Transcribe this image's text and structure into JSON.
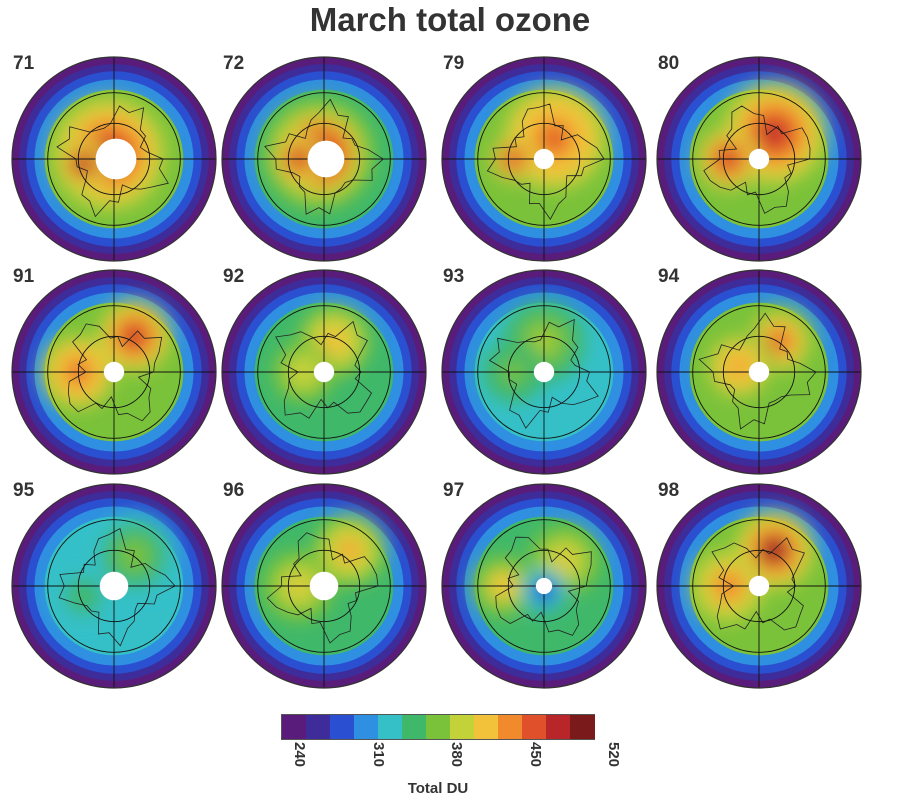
{
  "title": "March total ozone",
  "panels": [
    {
      "label": "71",
      "pattern": {
        "blobs": [
          {
            "dx": -0.05,
            "dy": -0.05,
            "r": 0.55,
            "v": 485
          },
          {
            "dx": -0.3,
            "dy": 0.05,
            "r": 0.25,
            "v": 505
          }
        ],
        "hole": 0.2,
        "bg": 370
      }
    },
    {
      "label": "72",
      "pattern": {
        "blobs": [
          {
            "dx": -0.05,
            "dy": -0.05,
            "r": 0.55,
            "v": 480
          },
          {
            "dx": -0.25,
            "dy": 0.0,
            "r": 0.25,
            "v": 500
          }
        ],
        "hole": 0.18,
        "bg": 365
      }
    },
    {
      "label": "79",
      "pattern": {
        "blobs": [
          {
            "dx": 0.1,
            "dy": -0.2,
            "r": 0.5,
            "v": 465
          },
          {
            "dx": -0.3,
            "dy": 0.0,
            "r": 0.22,
            "v": 495
          }
        ],
        "hole": 0.1,
        "bg": 385
      }
    },
    {
      "label": "80",
      "pattern": {
        "blobs": [
          {
            "dx": 0.15,
            "dy": -0.25,
            "r": 0.5,
            "v": 490
          },
          {
            "dx": -0.3,
            "dy": 0.0,
            "r": 0.3,
            "v": 480
          }
        ],
        "hole": 0.1,
        "bg": 390
      }
    },
    {
      "label": "91",
      "pattern": {
        "blobs": [
          {
            "dx": 0.2,
            "dy": -0.35,
            "r": 0.35,
            "v": 495
          },
          {
            "dx": -0.35,
            "dy": 0.0,
            "r": 0.35,
            "v": 470
          }
        ],
        "hole": 0.1,
        "bg": 375
      }
    },
    {
      "label": "92",
      "pattern": {
        "blobs": [
          {
            "dx": 0.1,
            "dy": -0.3,
            "r": 0.35,
            "v": 430
          },
          {
            "dx": -0.2,
            "dy": 0.0,
            "r": 0.3,
            "v": 410
          }
        ],
        "hole": 0.1,
        "bg": 365
      }
    },
    {
      "label": "93",
      "pattern": {
        "blobs": [
          {
            "dx": 0.0,
            "dy": -0.3,
            "r": 0.4,
            "v": 395
          },
          {
            "dx": -0.3,
            "dy": 0.0,
            "r": 0.3,
            "v": 385
          }
        ],
        "hole": 0.1,
        "bg": 345
      }
    },
    {
      "label": "94",
      "pattern": {
        "blobs": [
          {
            "dx": 0.2,
            "dy": -0.3,
            "r": 0.35,
            "v": 460
          },
          {
            "dx": -0.2,
            "dy": -0.05,
            "r": 0.35,
            "v": 445
          }
        ],
        "hole": 0.1,
        "bg": 370
      }
    },
    {
      "label": "95",
      "pattern": {
        "blobs": [
          {
            "dx": 0.2,
            "dy": -0.3,
            "r": 0.4,
            "v": 380
          },
          {
            "dx": -0.3,
            "dy": 0.1,
            "r": 0.3,
            "v": 360
          }
        ],
        "hole": 0.14,
        "bg": 330
      }
    },
    {
      "label": "96",
      "pattern": {
        "blobs": [
          {
            "dx": 0.25,
            "dy": -0.35,
            "r": 0.35,
            "v": 445
          },
          {
            "dx": -0.25,
            "dy": 0.0,
            "r": 0.35,
            "v": 420
          }
        ],
        "hole": 0.14,
        "bg": 360
      }
    },
    {
      "label": "97",
      "pattern": {
        "blobs": [
          {
            "dx": 0.2,
            "dy": -0.25,
            "r": 0.35,
            "v": 420
          },
          {
            "dx": -0.4,
            "dy": 0.0,
            "r": 0.3,
            "v": 430
          },
          {
            "dx": 0.0,
            "dy": 0.05,
            "r": 0.22,
            "v": 285
          }
        ],
        "hole": 0.08,
        "bg": 360
      }
    },
    {
      "label": "98",
      "pattern": {
        "blobs": [
          {
            "dx": 0.15,
            "dy": -0.35,
            "r": 0.38,
            "v": 500
          },
          {
            "dx": -0.3,
            "dy": 0.0,
            "r": 0.35,
            "v": 450
          }
        ],
        "hole": 0.1,
        "bg": 385
      }
    }
  ],
  "colorbar": {
    "label": "Total DU",
    "min": 240,
    "max": 520,
    "ticks": [
      "240",
      "310",
      "380",
      "450",
      "520"
    ],
    "colors": [
      "#5a1c7a",
      "#3d2c9a",
      "#2a4fd0",
      "#2f8fe0",
      "#35c0c8",
      "#3fb86a",
      "#7ac23a",
      "#c4d23a",
      "#f2c23a",
      "#f08a2c",
      "#e0502a",
      "#b8262a",
      "#7a1a1a"
    ]
  }
}
